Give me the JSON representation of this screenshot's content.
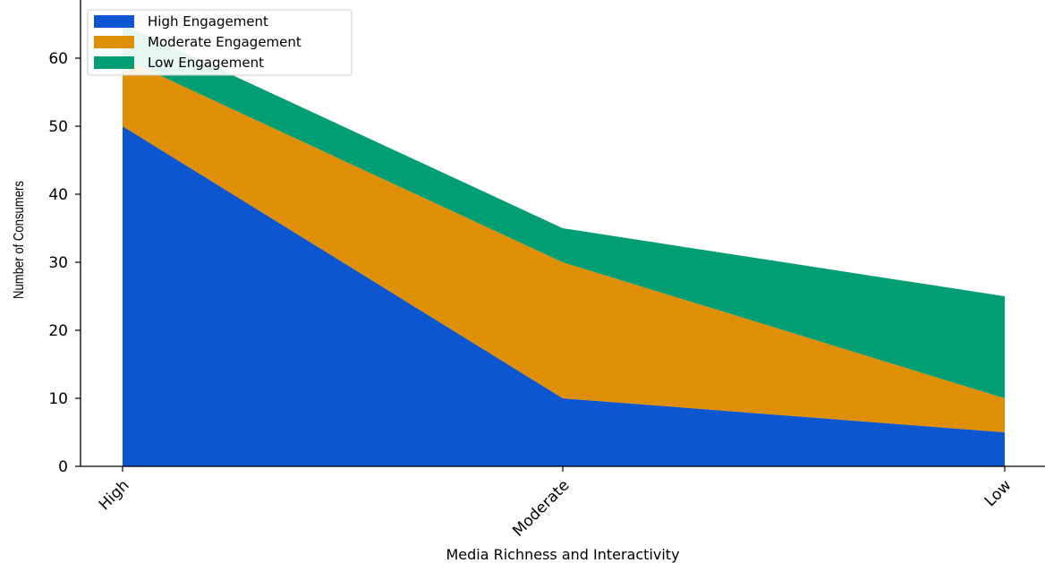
{
  "chart_data": {
    "type": "area",
    "stacked": true,
    "categories": [
      "High",
      "Moderate",
      "Low"
    ],
    "series": [
      {
        "name": "High Engagement",
        "values": [
          50,
          10,
          5
        ],
        "color": "#0c56d0"
      },
      {
        "name": "Moderate Engagement",
        "values": [
          10,
          20,
          5
        ],
        "color": "#de8f05"
      },
      {
        "name": "Low Engagement",
        "values": [
          5,
          5,
          15
        ],
        "color": "#029e73"
      }
    ],
    "title": "",
    "xlabel": "Media Richness and Interactivity",
    "ylabel": "Number of Consumers",
    "ylim": [
      0,
      67
    ],
    "yticks": [
      0,
      10,
      20,
      30,
      40,
      50,
      60
    ],
    "grid": false,
    "legend_position": "top-left"
  }
}
